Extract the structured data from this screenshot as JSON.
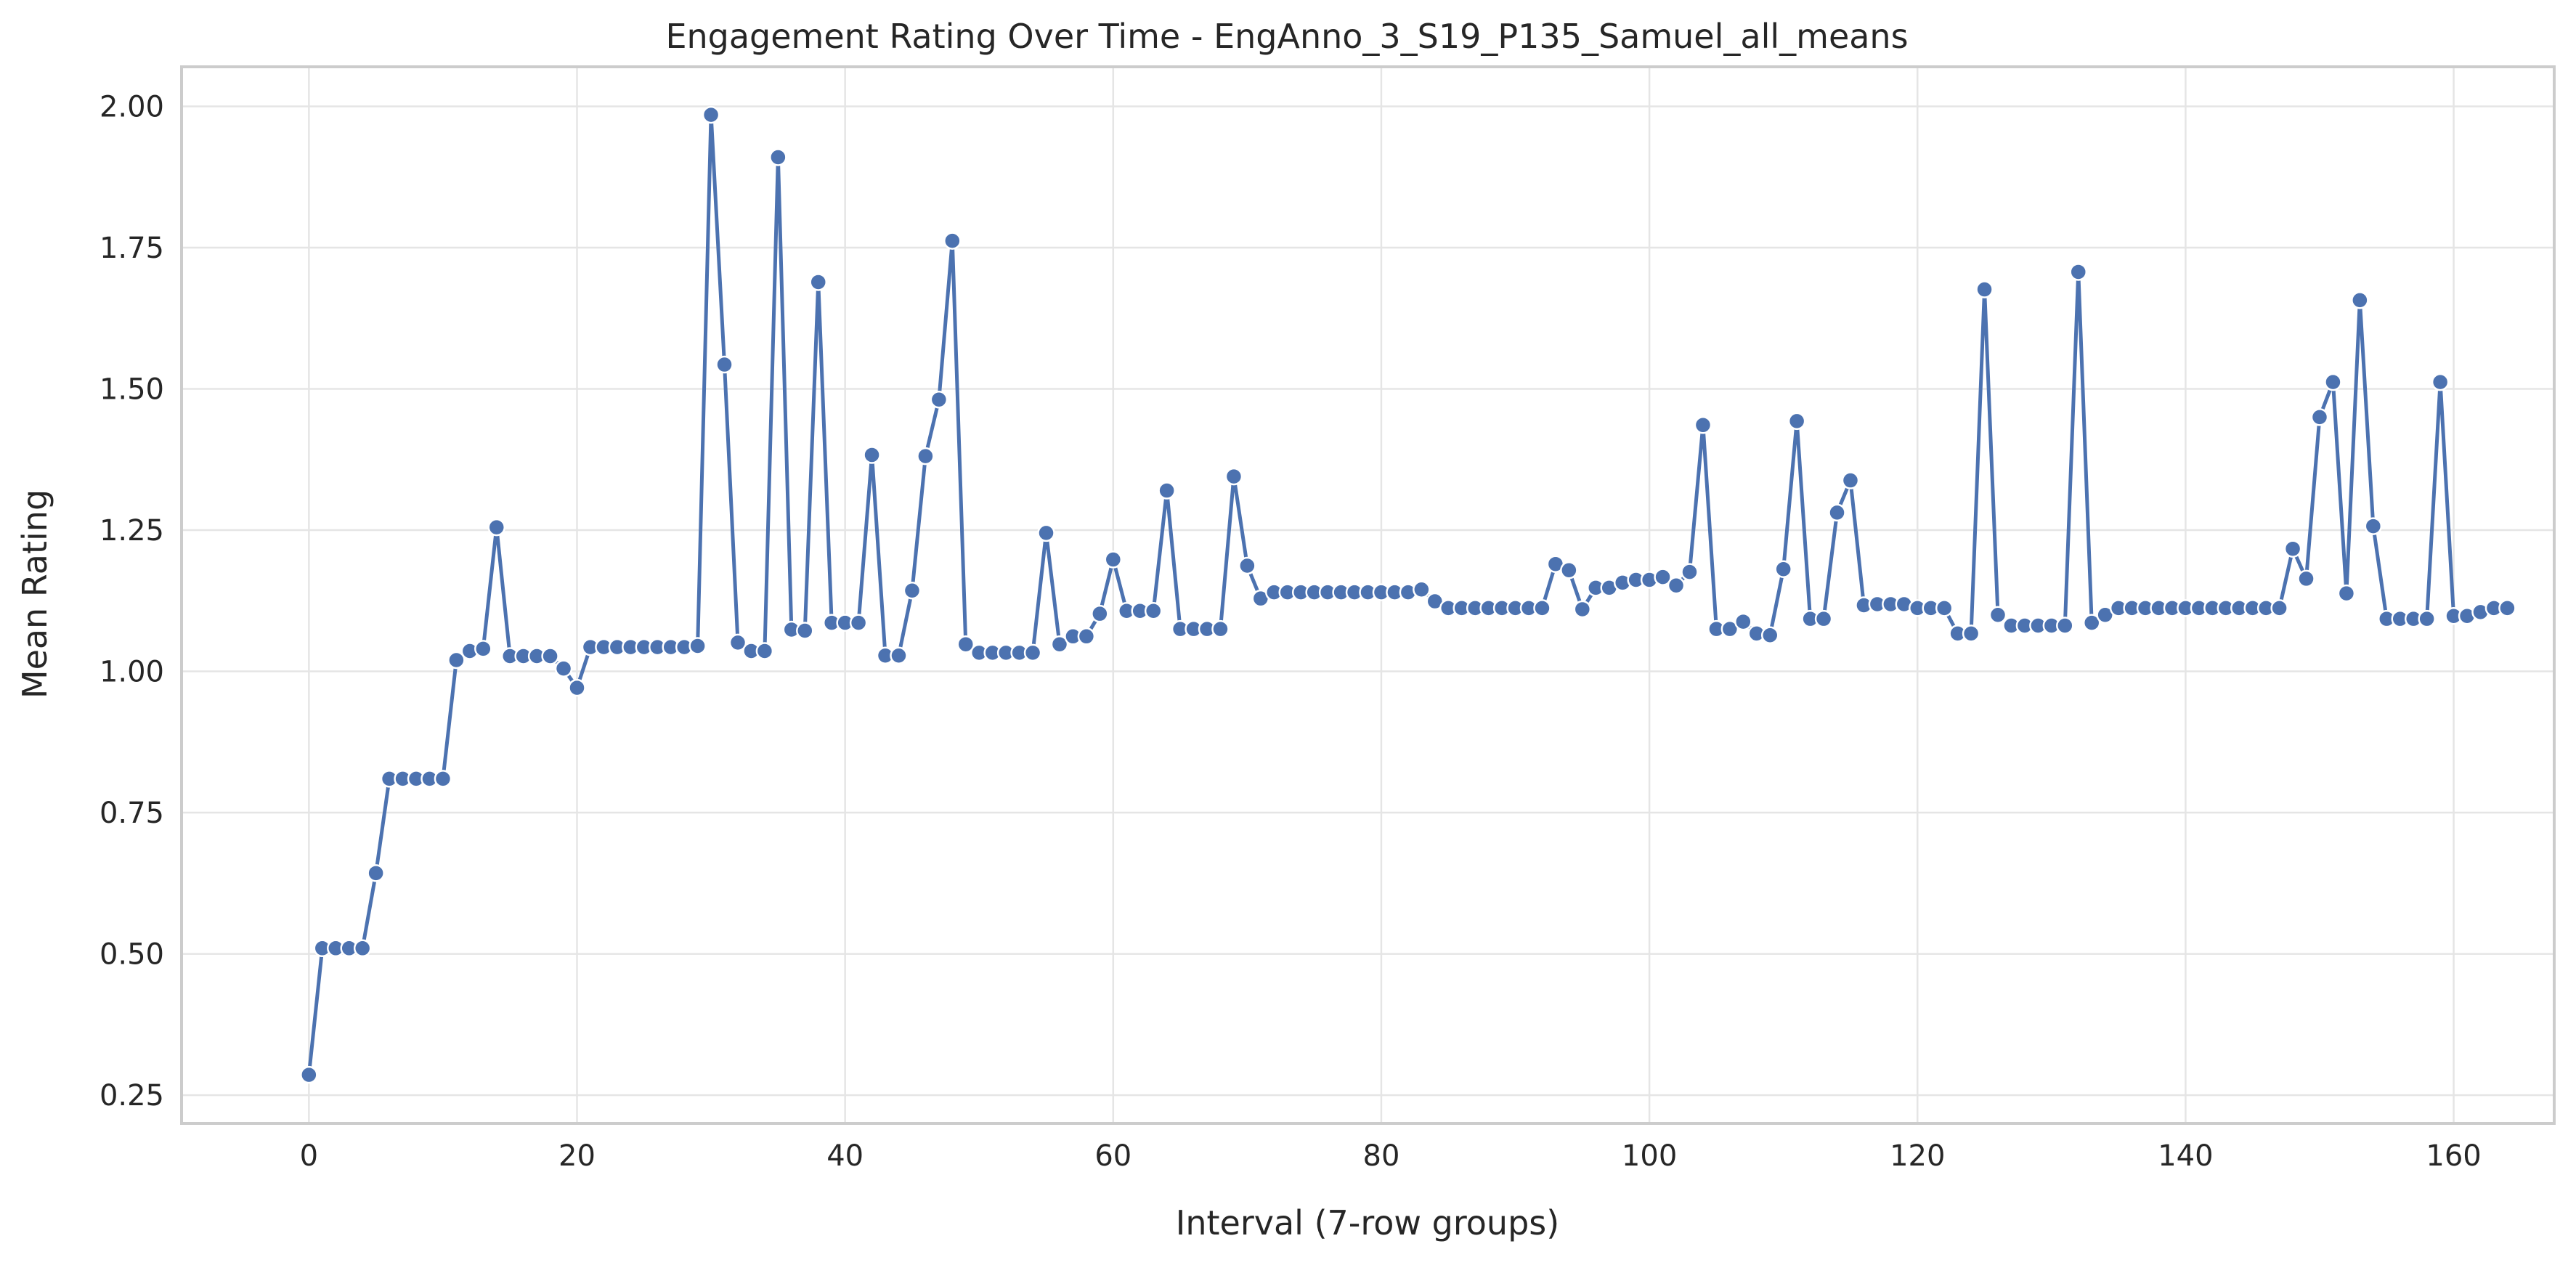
{
  "chart_data": {
    "type": "line",
    "title": "Engagement Rating Over Time -  EngAnno_3_S19_P135_Samuel_all_means",
    "xlabel": "Interval (7-row groups)",
    "ylabel": "Mean Rating",
    "xlim": [
      -9.5,
      167.5
    ],
    "ylim": [
      0.2,
      2.07
    ],
    "xticks": [
      0,
      20,
      40,
      60,
      80,
      100,
      120,
      140,
      160
    ],
    "yticks": [
      0.25,
      0.5,
      0.75,
      1.0,
      1.25,
      1.5,
      1.75,
      2.0
    ],
    "xtick_labels": [
      "0",
      "20",
      "40",
      "60",
      "80",
      "100",
      "120",
      "140",
      "160"
    ],
    "ytick_labels": [
      "0.25",
      "0.50",
      "0.75",
      "1.00",
      "1.25",
      "1.50",
      "1.75",
      "2.00"
    ],
    "grid": true,
    "line_color": "#4c72b0",
    "marker": "circle",
    "series": [
      {
        "values": [
          0.286,
          0.51,
          0.51,
          0.51,
          0.51,
          0.643,
          0.81,
          0.81,
          0.81,
          0.81,
          0.81,
          1.02,
          1.036,
          1.04,
          1.255,
          1.027,
          1.027,
          1.027,
          1.027,
          1.005,
          0.971,
          1.043,
          1.043,
          1.043,
          1.043,
          1.043,
          1.043,
          1.043,
          1.043,
          1.045,
          1.985,
          1.543,
          1.051,
          1.036,
          1.036,
          1.91,
          1.074,
          1.072,
          1.689,
          1.086,
          1.086,
          1.086,
          1.383,
          1.028,
          1.028,
          1.143,
          1.381,
          1.481,
          1.762,
          1.048,
          1.033,
          1.033,
          1.033,
          1.033,
          1.033,
          1.245,
          1.048,
          1.062,
          1.062,
          1.102,
          1.198,
          1.107,
          1.107,
          1.107,
          1.32,
          1.075,
          1.075,
          1.075,
          1.075,
          1.345,
          1.187,
          1.129,
          1.14,
          1.14,
          1.14,
          1.14,
          1.14,
          1.14,
          1.14,
          1.14,
          1.14,
          1.14,
          1.14,
          1.145,
          1.124,
          1.112,
          1.112,
          1.112,
          1.112,
          1.112,
          1.112,
          1.112,
          1.112,
          1.19,
          1.179,
          1.11,
          1.148,
          1.148,
          1.157,
          1.162,
          1.162,
          1.167,
          1.152,
          1.176,
          1.436,
          1.075,
          1.075,
          1.088,
          1.067,
          1.064,
          1.181,
          1.443,
          1.093,
          1.093,
          1.281,
          1.338,
          1.117,
          1.119,
          1.119,
          1.119,
          1.112,
          1.112,
          1.112,
          1.067,
          1.067,
          1.676,
          1.1,
          1.081,
          1.081,
          1.081,
          1.081,
          1.081,
          1.707,
          1.086,
          1.1,
          1.112,
          1.112,
          1.112,
          1.112,
          1.112,
          1.112,
          1.112,
          1.112,
          1.112,
          1.112,
          1.112,
          1.112,
          1.112,
          1.217,
          1.164,
          1.45,
          1.512,
          1.138,
          1.657,
          1.257,
          1.093,
          1.093,
          1.093,
          1.093,
          1.512,
          1.098,
          1.098,
          1.105,
          1.112,
          1.112
        ]
      }
    ]
  }
}
